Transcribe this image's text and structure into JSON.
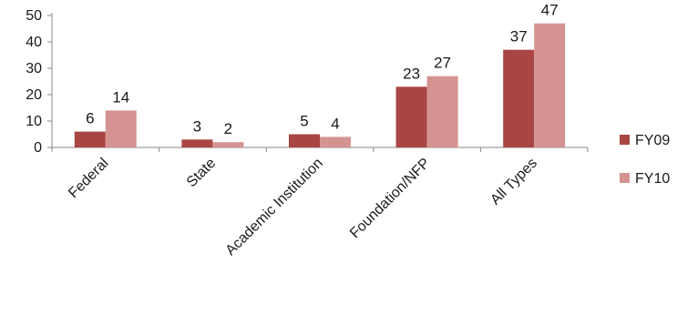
{
  "chart_data": {
    "type": "bar",
    "title": "",
    "xlabel": "",
    "ylabel": "",
    "categories": [
      "Federal",
      "State",
      "Academic Institution",
      "Foundation/NFP",
      "All Types"
    ],
    "series": [
      {
        "name": "FY09",
        "color": "#a94542",
        "values": [
          6,
          3,
          5,
          23,
          37
        ]
      },
      {
        "name": "FY10",
        "color": "#d49391",
        "values": [
          14,
          2,
          4,
          27,
          47
        ]
      }
    ],
    "ylim": [
      0,
      50
    ],
    "yticks": [
      "0",
      "10",
      "20",
      "30",
      "40",
      "50"
    ],
    "grid": false,
    "legend": "right",
    "data_labels": true
  }
}
